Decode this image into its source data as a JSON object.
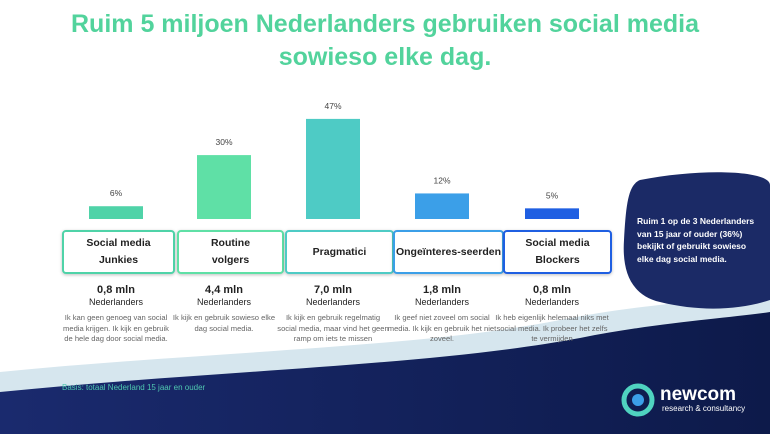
{
  "chart_data": {
    "type": "bar",
    "title": "Ruim 5 miljoen Nederlanders gebruiken social media sowieso elke dag.",
    "categories": [
      "Social media\nJunkies",
      "Routine\nvolgers",
      "Pragmatici",
      "Ongeïnteres-seerden",
      "Social media\nBlockers"
    ],
    "values": [
      6,
      30,
      47,
      12,
      5
    ],
    "value_labels": [
      "6%",
      "30%",
      "47%",
      "12%",
      "5%"
    ],
    "colors": [
      "#4fd3a8",
      "#5fe0a6",
      "#4ecbc5",
      "#3b9fe8",
      "#1f5fe2"
    ]
  },
  "segments": [
    {
      "population": "0,8 mln",
      "unit": "Nederlanders",
      "description": "Ik kan geen genoeg van social media krijgen. Ik kijk en gebruik de hele dag door social media."
    },
    {
      "population": "4,4 mln",
      "unit": "Nederlanders",
      "description": "Ik kijk en gebruik sowieso elke dag social media."
    },
    {
      "population": "7,0 mln",
      "unit": "Nederlanders",
      "description": "Ik kijk en gebruik regelmatig social media, maar vind het geen ramp om iets te missen"
    },
    {
      "population": "1,8 mln",
      "unit": "Nederlanders",
      "description": "Ik geef niet zoveel om social media. Ik kijk en gebruik het niet zoveel."
    },
    {
      "population": "0,8 mln",
      "unit": "Nederlanders",
      "description": "Ik heb eigenlijk helemaal niks met social media. Ik probeer het zelfs te vermijden"
    }
  ],
  "callout": "Ruim 1 op de 3 Nederlanders van 15 jaar of ouder (36%) bekijkt of gebruikt sowieso elke dag social media.",
  "footnote": "Basis: totaal Nederland 15 jaar en ouder",
  "logo": {
    "name": "newcom",
    "tagline": "research & consultancy"
  }
}
